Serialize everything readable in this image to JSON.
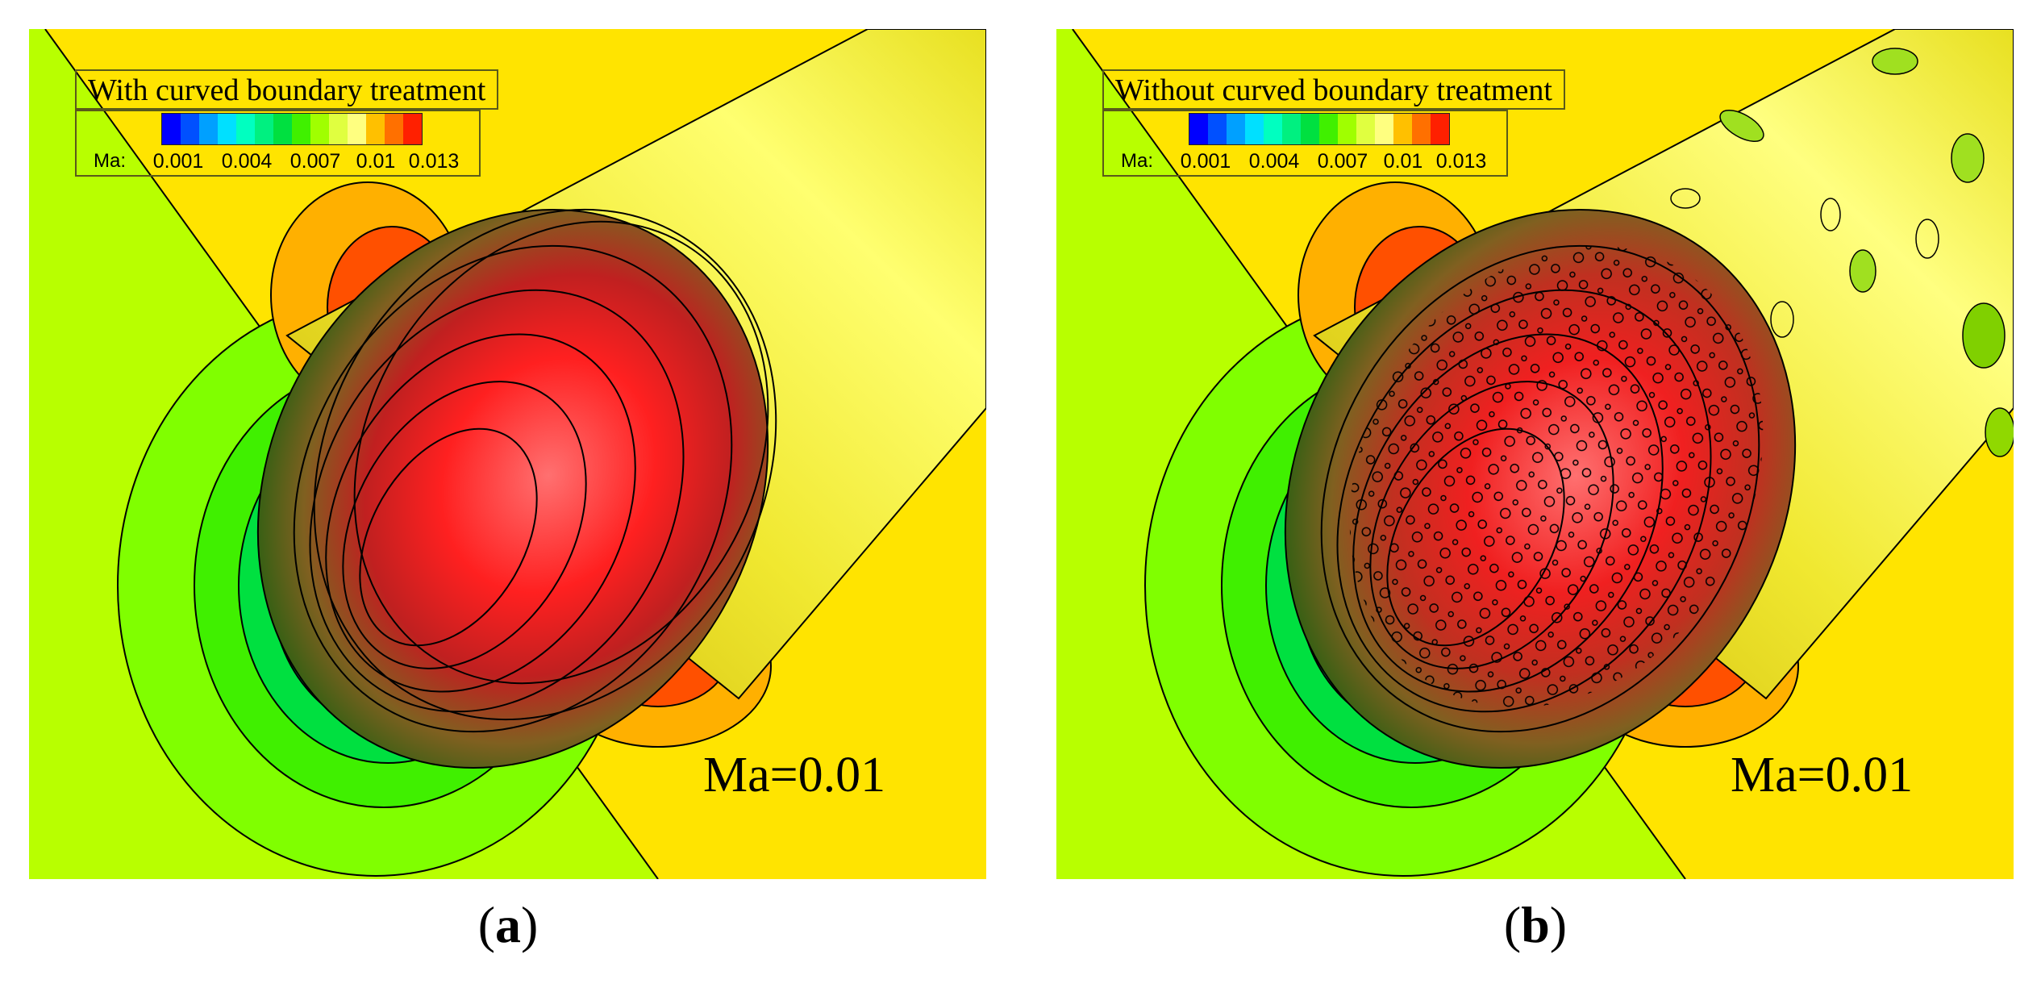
{
  "panels": [
    {
      "id": "a",
      "title": "With curved boundary treatment",
      "ma_label": "Ma=0.01",
      "caption_open": "(",
      "caption_letter": "a",
      "caption_close": ")"
    },
    {
      "id": "b",
      "title": "Without curved boundary treatment",
      "ma_label": "Ma=0.01",
      "caption_open": "(",
      "caption_letter": "b",
      "caption_close": ")"
    }
  ],
  "colorbar": {
    "variable": "Ma:",
    "ticks": [
      "0.001",
      "0.004",
      "0.007",
      "0.01",
      "0.013"
    ],
    "colors": [
      "#0000ff",
      "#0050ff",
      "#00a0ff",
      "#00e0ff",
      "#00ffc0",
      "#00f080",
      "#00e040",
      "#40f000",
      "#a0ff00",
      "#e0ff40",
      "#ffff80",
      "#ffc000",
      "#ff7000",
      "#ff2000"
    ]
  },
  "colors": {
    "background_left": "#b8ff00",
    "background_right": "#ffe400",
    "cylinder": "#e8e020",
    "nose_peak": "#ff2020"
  }
}
